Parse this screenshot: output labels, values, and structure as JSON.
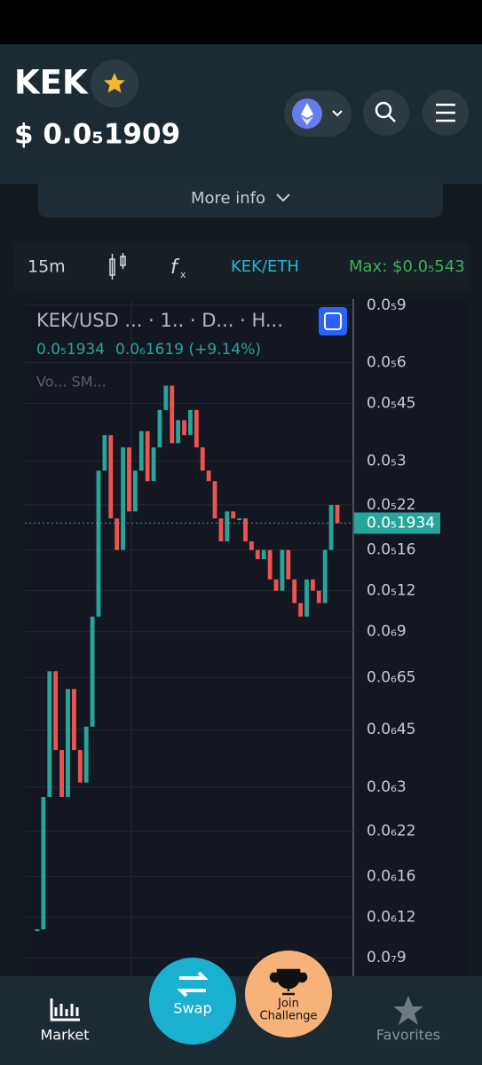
{
  "header": {
    "symbol": "KEK",
    "price": "$ 0.0₅1909"
  },
  "more_info": "More info",
  "toolbar": {
    "interval": "15m",
    "pair": "KEK/ETH",
    "max": "Max: $0.0₅543"
  },
  "chart_data": {
    "type": "candlestick",
    "legend": "KEK/USD ...  · 1..  · D...  · H...",
    "ohlc_close": "0.0₅1934",
    "change": "0.0₆1619 (+9.14%)",
    "indicators": "Vo...  SM...",
    "log_scale": true,
    "grid": true,
    "up_color": "#26a69a",
    "down_color": "#ef5350",
    "ylim": [
      7.9e-08,
      9.4e-06
    ],
    "yticks": [
      {
        "value": 9e-06,
        "label": "0.0₅9"
      },
      {
        "value": 6e-06,
        "label": "0.0₅6"
      },
      {
        "value": 4.5e-06,
        "label": "0.0₅45"
      },
      {
        "value": 3e-06,
        "label": "0.0₅3"
      },
      {
        "value": 2.2e-06,
        "label": "0.0₅22"
      },
      {
        "value": 1.6e-06,
        "label": "0.0₅16"
      },
      {
        "value": 1.2e-06,
        "label": "0.0₅12"
      },
      {
        "value": 9e-07,
        "label": "0.0₆9"
      },
      {
        "value": 6.5e-07,
        "label": "0.0₆65"
      },
      {
        "value": 4.5e-07,
        "label": "0.0₆45"
      },
      {
        "value": 3e-07,
        "label": "0.0₆3"
      },
      {
        "value": 2.2e-07,
        "label": "0.0₆22"
      },
      {
        "value": 1.6e-07,
        "label": "0.0₆16"
      },
      {
        "value": 1.2e-07,
        "label": "0.0₆12"
      },
      {
        "value": 9e-08,
        "label": "0.0₇9"
      }
    ],
    "values": [
      1.1e-07,
      2.8e-07,
      6.8e-07,
      3.9e-07,
      2.8e-07,
      6e-07,
      3.9e-07,
      3.1e-07,
      4.6e-07,
      1e-06,
      2.8e-06,
      3.6e-06,
      2e-06,
      1.6e-06,
      3.3e-06,
      2.1e-06,
      2.8e-06,
      3.7e-06,
      2.6e-06,
      3.3e-06,
      4.3e-06,
      5.1e-06,
      3.4e-06,
      4e-06,
      3.6e-06,
      4.3e-06,
      3.3e-06,
      2.8e-06,
      2.6e-06,
      2e-06,
      1.7e-06,
      2.1e-06,
      2e-06,
      2e-06,
      1.7e-06,
      1.6e-06,
      1.5e-06,
      1.6e-06,
      1.3e-06,
      1.2e-06,
      1.6e-06,
      1.3e-06,
      1.1e-06,
      1e-06,
      1.3e-06,
      1.2e-06,
      1.1e-06,
      1.6e-06,
      2.2e-06,
      1.934e-06
    ],
    "last_price": {
      "value": 1.934e-06,
      "label": "0.0₅1934"
    }
  },
  "nav": {
    "market": "Market",
    "swap": "Swap",
    "join": {
      "line1": "Join",
      "line2": "Challenge"
    },
    "favorites": "Favorites"
  }
}
